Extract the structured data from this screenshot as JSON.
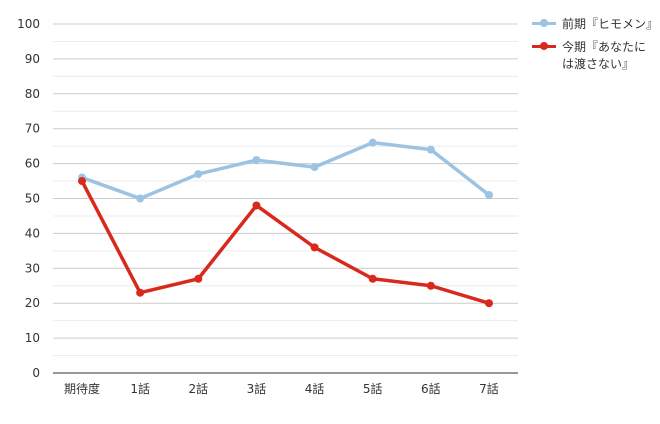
{
  "chart_data": {
    "type": "line",
    "categories": [
      "期待度",
      "1話",
      "2話",
      "3話",
      "4話",
      "5話",
      "6話",
      "7話"
    ],
    "series": [
      {
        "name": "前期『ヒモメン』",
        "color": "#9dc3e2",
        "values": [
          56,
          50,
          57,
          61,
          59,
          66,
          64,
          51
        ]
      },
      {
        "name": "今期『あなたには渡さない』",
        "color": "#d9291c",
        "values": [
          55,
          23,
          27,
          48,
          36,
          27,
          25,
          20
        ]
      }
    ],
    "ylim": [
      0,
      100
    ],
    "yticks": [
      0,
      10,
      20,
      30,
      40,
      50,
      60,
      70,
      80,
      90,
      100
    ],
    "grid": true,
    "legend_position": "right",
    "title": "",
    "xlabel": "",
    "ylabel": ""
  }
}
